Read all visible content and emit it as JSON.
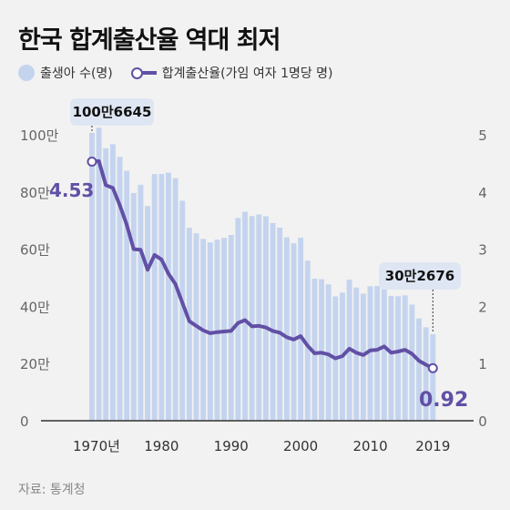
{
  "title": "한국 합계출산율 역대 최저",
  "legend": {
    "births": "출생아 수(명)",
    "tfr": "합계출산율(가임 여자 1명당 명)"
  },
  "source": "자료: 통계청",
  "colors": {
    "bar": "#c5d4ee",
    "line": "#6150a5",
    "callout": "#dfe6f3",
    "background": "#f2f2f2"
  },
  "chart_data": {
    "type": "bar+line",
    "x": [
      1970,
      1971,
      1972,
      1973,
      1974,
      1975,
      1976,
      1977,
      1978,
      1979,
      1980,
      1981,
      1982,
      1983,
      1984,
      1985,
      1986,
      1987,
      1988,
      1989,
      1990,
      1991,
      1992,
      1993,
      1994,
      1995,
      1996,
      1997,
      1998,
      1999,
      2000,
      2001,
      2002,
      2003,
      2004,
      2005,
      2006,
      2007,
      2008,
      2009,
      2010,
      2011,
      2012,
      2013,
      2014,
      2015,
      2016,
      2017,
      2018,
      2019
    ],
    "x_tick_labels": [
      "1970년",
      "1980",
      "1990",
      "2000",
      "2010",
      "2019"
    ],
    "series": [
      {
        "name": "출생아 수(명)",
        "type": "bar",
        "axis": "left",
        "values": [
          1006645,
          1024773,
          952780,
          967000,
          922823,
          874030,
          796331,
          825339,
          750728,
          862669,
          862835,
          867409,
          848312,
          769155,
          674793,
          655489,
          636019,
          623831,
          633092,
          639431,
          649738,
          709275,
          730678,
          715826,
          721185,
          715020,
          691226,
          675394,
          641594,
          620668,
          640089,
          559934,
          496911,
          495036,
          476958,
          435031,
          448153,
          493189,
          465892,
          444849,
          470171,
          471265,
          484550,
          436455,
          435435,
          438420,
          406243,
          357771,
          326822,
          302676
        ]
      },
      {
        "name": "합계출산율(가임 여자 1명당 명)",
        "type": "line",
        "axis": "right",
        "values": [
          4.53,
          4.54,
          4.12,
          4.07,
          3.77,
          3.43,
          3.0,
          2.99,
          2.64,
          2.9,
          2.82,
          2.57,
          2.39,
          2.06,
          1.74,
          1.66,
          1.58,
          1.53,
          1.55,
          1.56,
          1.57,
          1.71,
          1.76,
          1.65,
          1.66,
          1.63,
          1.57,
          1.54,
          1.46,
          1.42,
          1.48,
          1.31,
          1.18,
          1.19,
          1.16,
          1.09,
          1.13,
          1.26,
          1.19,
          1.15,
          1.23,
          1.24,
          1.3,
          1.19,
          1.21,
          1.24,
          1.17,
          1.05,
          0.98,
          0.92
        ]
      }
    ],
    "left_axis": {
      "ticks": [
        "0",
        "20만",
        "40만",
        "60만",
        "80만",
        "100만"
      ],
      "ylim": [
        0,
        1000000
      ]
    },
    "right_axis": {
      "ticks": [
        "0",
        "1",
        "2",
        "3",
        "4",
        "5"
      ],
      "ylim": [
        0,
        5
      ]
    },
    "annotations": {
      "births_1970": "100만6645",
      "births_2019": "30만2676",
      "tfr_1970": "4.53",
      "tfr_2019": "0.92"
    },
    "grid": false
  }
}
